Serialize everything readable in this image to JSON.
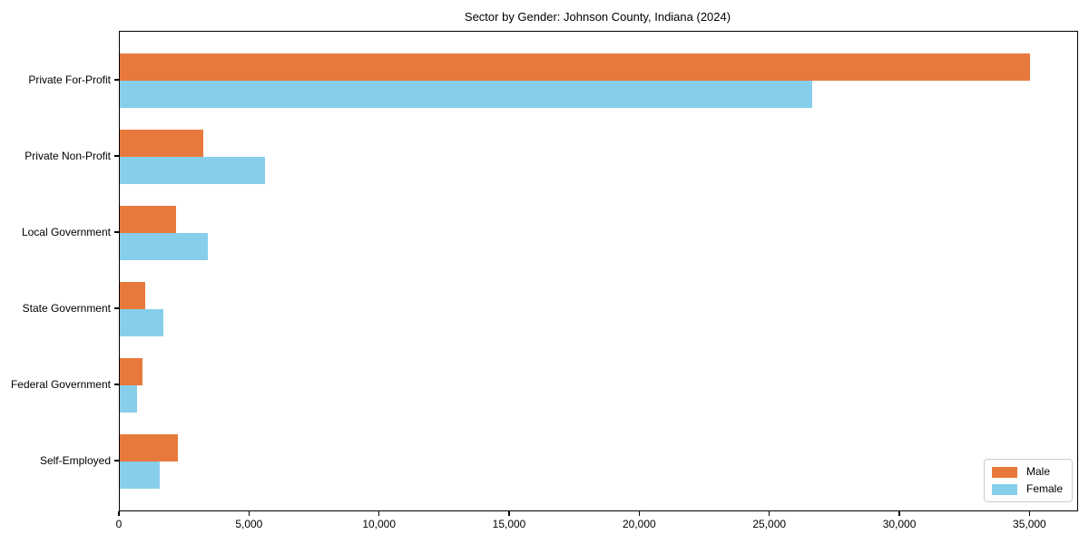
{
  "chart_data": {
    "type": "bar",
    "orientation": "horizontal",
    "title": "Sector by Gender: Johnson County, Indiana (2024)",
    "categories": [
      "Private For-Profit",
      "Private Non-Profit",
      "Local Government",
      "State Government",
      "Federal Government",
      "Self-Employed"
    ],
    "series": [
      {
        "name": "Male",
        "color": "#e8793c",
        "values": [
          35000,
          3200,
          2160,
          980,
          860,
          2220
        ]
      },
      {
        "name": "Female",
        "color": "#87ceeb",
        "values": [
          26600,
          5580,
          3380,
          1670,
          670,
          1550
        ]
      }
    ],
    "xlabel": "",
    "ylabel": "",
    "xticks": [
      0,
      5000,
      10000,
      15000,
      20000,
      25000,
      30000,
      35000
    ],
    "xlim": [
      0,
      36800
    ],
    "grid": false,
    "legend_position": "lower right",
    "spine_color": "#000000",
    "background_color": "#ffffff"
  }
}
